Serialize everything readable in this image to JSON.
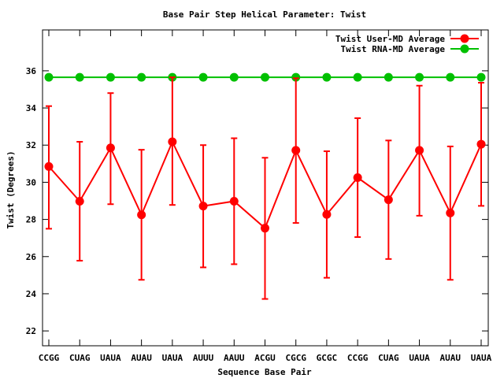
{
  "chart_data": {
    "type": "line",
    "title": "Base Pair Step Helical Parameter: Twist",
    "xlabel": "Sequence Base Pair",
    "ylabel": "Twist (Degrees)",
    "categories": [
      "CCGG",
      "CUAG",
      "UAUA",
      "AUAU",
      "UAUA",
      "AUUU",
      "AAUU",
      "ACGU",
      "CGCG",
      "GCGC",
      "CCGG",
      "CUAG",
      "UAUA",
      "AUAU",
      "UAUA"
    ],
    "ylim": [
      21.2,
      38.2
    ],
    "yticks": [
      22,
      24,
      26,
      28,
      30,
      32,
      34,
      36
    ],
    "legend_position": "top-right",
    "series": [
      {
        "name": "Twist User-MD Average",
        "color": "#ff0000",
        "values": [
          30.85,
          28.98,
          31.85,
          28.25,
          32.18,
          28.72,
          28.98,
          27.53,
          31.72,
          28.27,
          30.25,
          29.06,
          31.72,
          28.35,
          32.05
        ],
        "error_low": [
          27.5,
          25.78,
          28.82,
          24.75,
          28.78,
          25.42,
          25.59,
          23.72,
          27.81,
          24.86,
          27.05,
          25.87,
          28.2,
          24.75,
          28.73
        ],
        "error_high": [
          34.1,
          32.18,
          34.8,
          31.75,
          35.65,
          32.0,
          32.37,
          31.32,
          35.6,
          31.67,
          33.45,
          32.25,
          35.2,
          31.93,
          35.36
        ]
      },
      {
        "name": "Twist RNA-MD Average",
        "color": "#00c000",
        "values": [
          35.65,
          35.65,
          35.65,
          35.65,
          35.65,
          35.65,
          35.65,
          35.65,
          35.65,
          35.65,
          35.65,
          35.65,
          35.65,
          35.65,
          35.65
        ]
      }
    ]
  }
}
